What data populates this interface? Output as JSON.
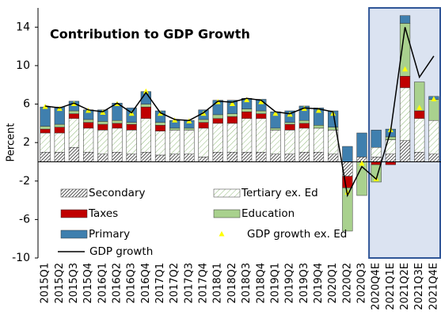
{
  "chart_data": {
    "type": "stacked_bar",
    "title": "Contribution to GDP Growth",
    "y_label": "Percent",
    "categories": [
      "2015Q1",
      "2015Q2",
      "2015Q3",
      "2015Q4",
      "2016Q1",
      "2016Q2",
      "2016Q3",
      "2016Q4",
      "2017Q1",
      "2017Q2",
      "2017Q3",
      "2017Q4",
      "2018Q1",
      "2018Q2",
      "2018Q3",
      "2018Q4",
      "2019Q1",
      "2019Q2",
      "2019Q3",
      "2019Q4",
      "2020Q1",
      "2020Q2",
      "2020Q3",
      "2020Q4E",
      "2021Q1E",
      "2021Q2E",
      "2021Q3E",
      "2021Q4E"
    ],
    "highlight_start": "2020Q4E",
    "series": [
      {
        "name": "Secondary",
        "color": "#000000",
        "hatch": true,
        "values": [
          1,
          1,
          1.5,
          1,
          0.8,
          1,
          0.8,
          1,
          0.7,
          0.8,
          0.8,
          0.5,
          1,
          1,
          1,
          1,
          0.8,
          0.8,
          1,
          1,
          0.8,
          -1.5,
          0.5,
          0.5,
          0.8,
          2.2,
          1,
          0.8
        ]
      },
      {
        "name": "Tertiary ex. Ed",
        "color": "#8fb878",
        "hatch": true,
        "values": [
          2,
          2,
          3,
          2.5,
          2.5,
          2.5,
          2.5,
          3.5,
          2.5,
          2.5,
          2.5,
          3,
          3,
          3,
          3.5,
          3.5,
          2.5,
          2.5,
          2.5,
          2.5,
          2.5,
          0,
          0,
          1,
          1.5,
          5.5,
          3.5,
          3.5
        ]
      },
      {
        "name": "Taxes",
        "color": "#c00000",
        "values": [
          0.4,
          0.6,
          0.5,
          0.6,
          0.6,
          0.5,
          0.6,
          1.2,
          0.6,
          0,
          0,
          0.6,
          0.5,
          0.7,
          0.7,
          0.5,
          0,
          0.6,
          0.5,
          0,
          0,
          -1.2,
          0,
          -0.3,
          -0.3,
          1.2,
          0.8,
          0
        ]
      },
      {
        "name": "Education",
        "color": "#a9d18e",
        "values": [
          0.3,
          0.3,
          0.3,
          0.3,
          0.3,
          0.3,
          0.2,
          0.3,
          0.3,
          0.2,
          0.2,
          0.3,
          0.4,
          0.3,
          0.3,
          0.3,
          0.2,
          0.2,
          0.3,
          0.3,
          0.3,
          -4.5,
          -3.5,
          -1.8,
          0.3,
          5.5,
          3,
          2.2
        ]
      },
      {
        "name": "Primary",
        "color": "#3f7fae",
        "values": [
          2,
          1.8,
          1,
          1,
          1.2,
          1.8,
          1.5,
          1.3,
          1.2,
          0.8,
          0.8,
          1,
          1.5,
          1.4,
          1.1,
          1.2,
          1.7,
          1.2,
          1.5,
          1.8,
          1.7,
          1.6,
          2.5,
          1.8,
          0.8,
          0.8,
          0,
          0.3
        ]
      },
      {
        "name": "GDP growth ex. Ed",
        "color": "#ffff00",
        "kind": "scatter",
        "values": [
          5.7,
          5.5,
          6,
          5.3,
          5.1,
          6,
          5,
          7.3,
          5,
          4.3,
          4.2,
          5,
          6.2,
          6,
          6.4,
          6.2,
          5,
          4.9,
          5.5,
          5.3,
          5,
          -3.2,
          -0.2,
          -1.8,
          3.3,
          9.6,
          5.6,
          6.5
        ]
      },
      {
        "name": "GDP growth",
        "color": "#000000",
        "kind": "line",
        "values": [
          5.8,
          5.6,
          6.1,
          5.4,
          5.2,
          6.1,
          5.1,
          7.2,
          5.1,
          4.4,
          4.3,
          5.1,
          6.3,
          6.2,
          6.6,
          6.4,
          5.2,
          5,
          5.6,
          5.5,
          5.2,
          -3.5,
          -0.5,
          -1.8,
          3.2,
          14,
          8.8,
          11
        ]
      }
    ],
    "ylim": [
      -10,
      16
    ],
    "yticks": [
      -10,
      -6,
      -2,
      2,
      6,
      10,
      14
    ]
  }
}
